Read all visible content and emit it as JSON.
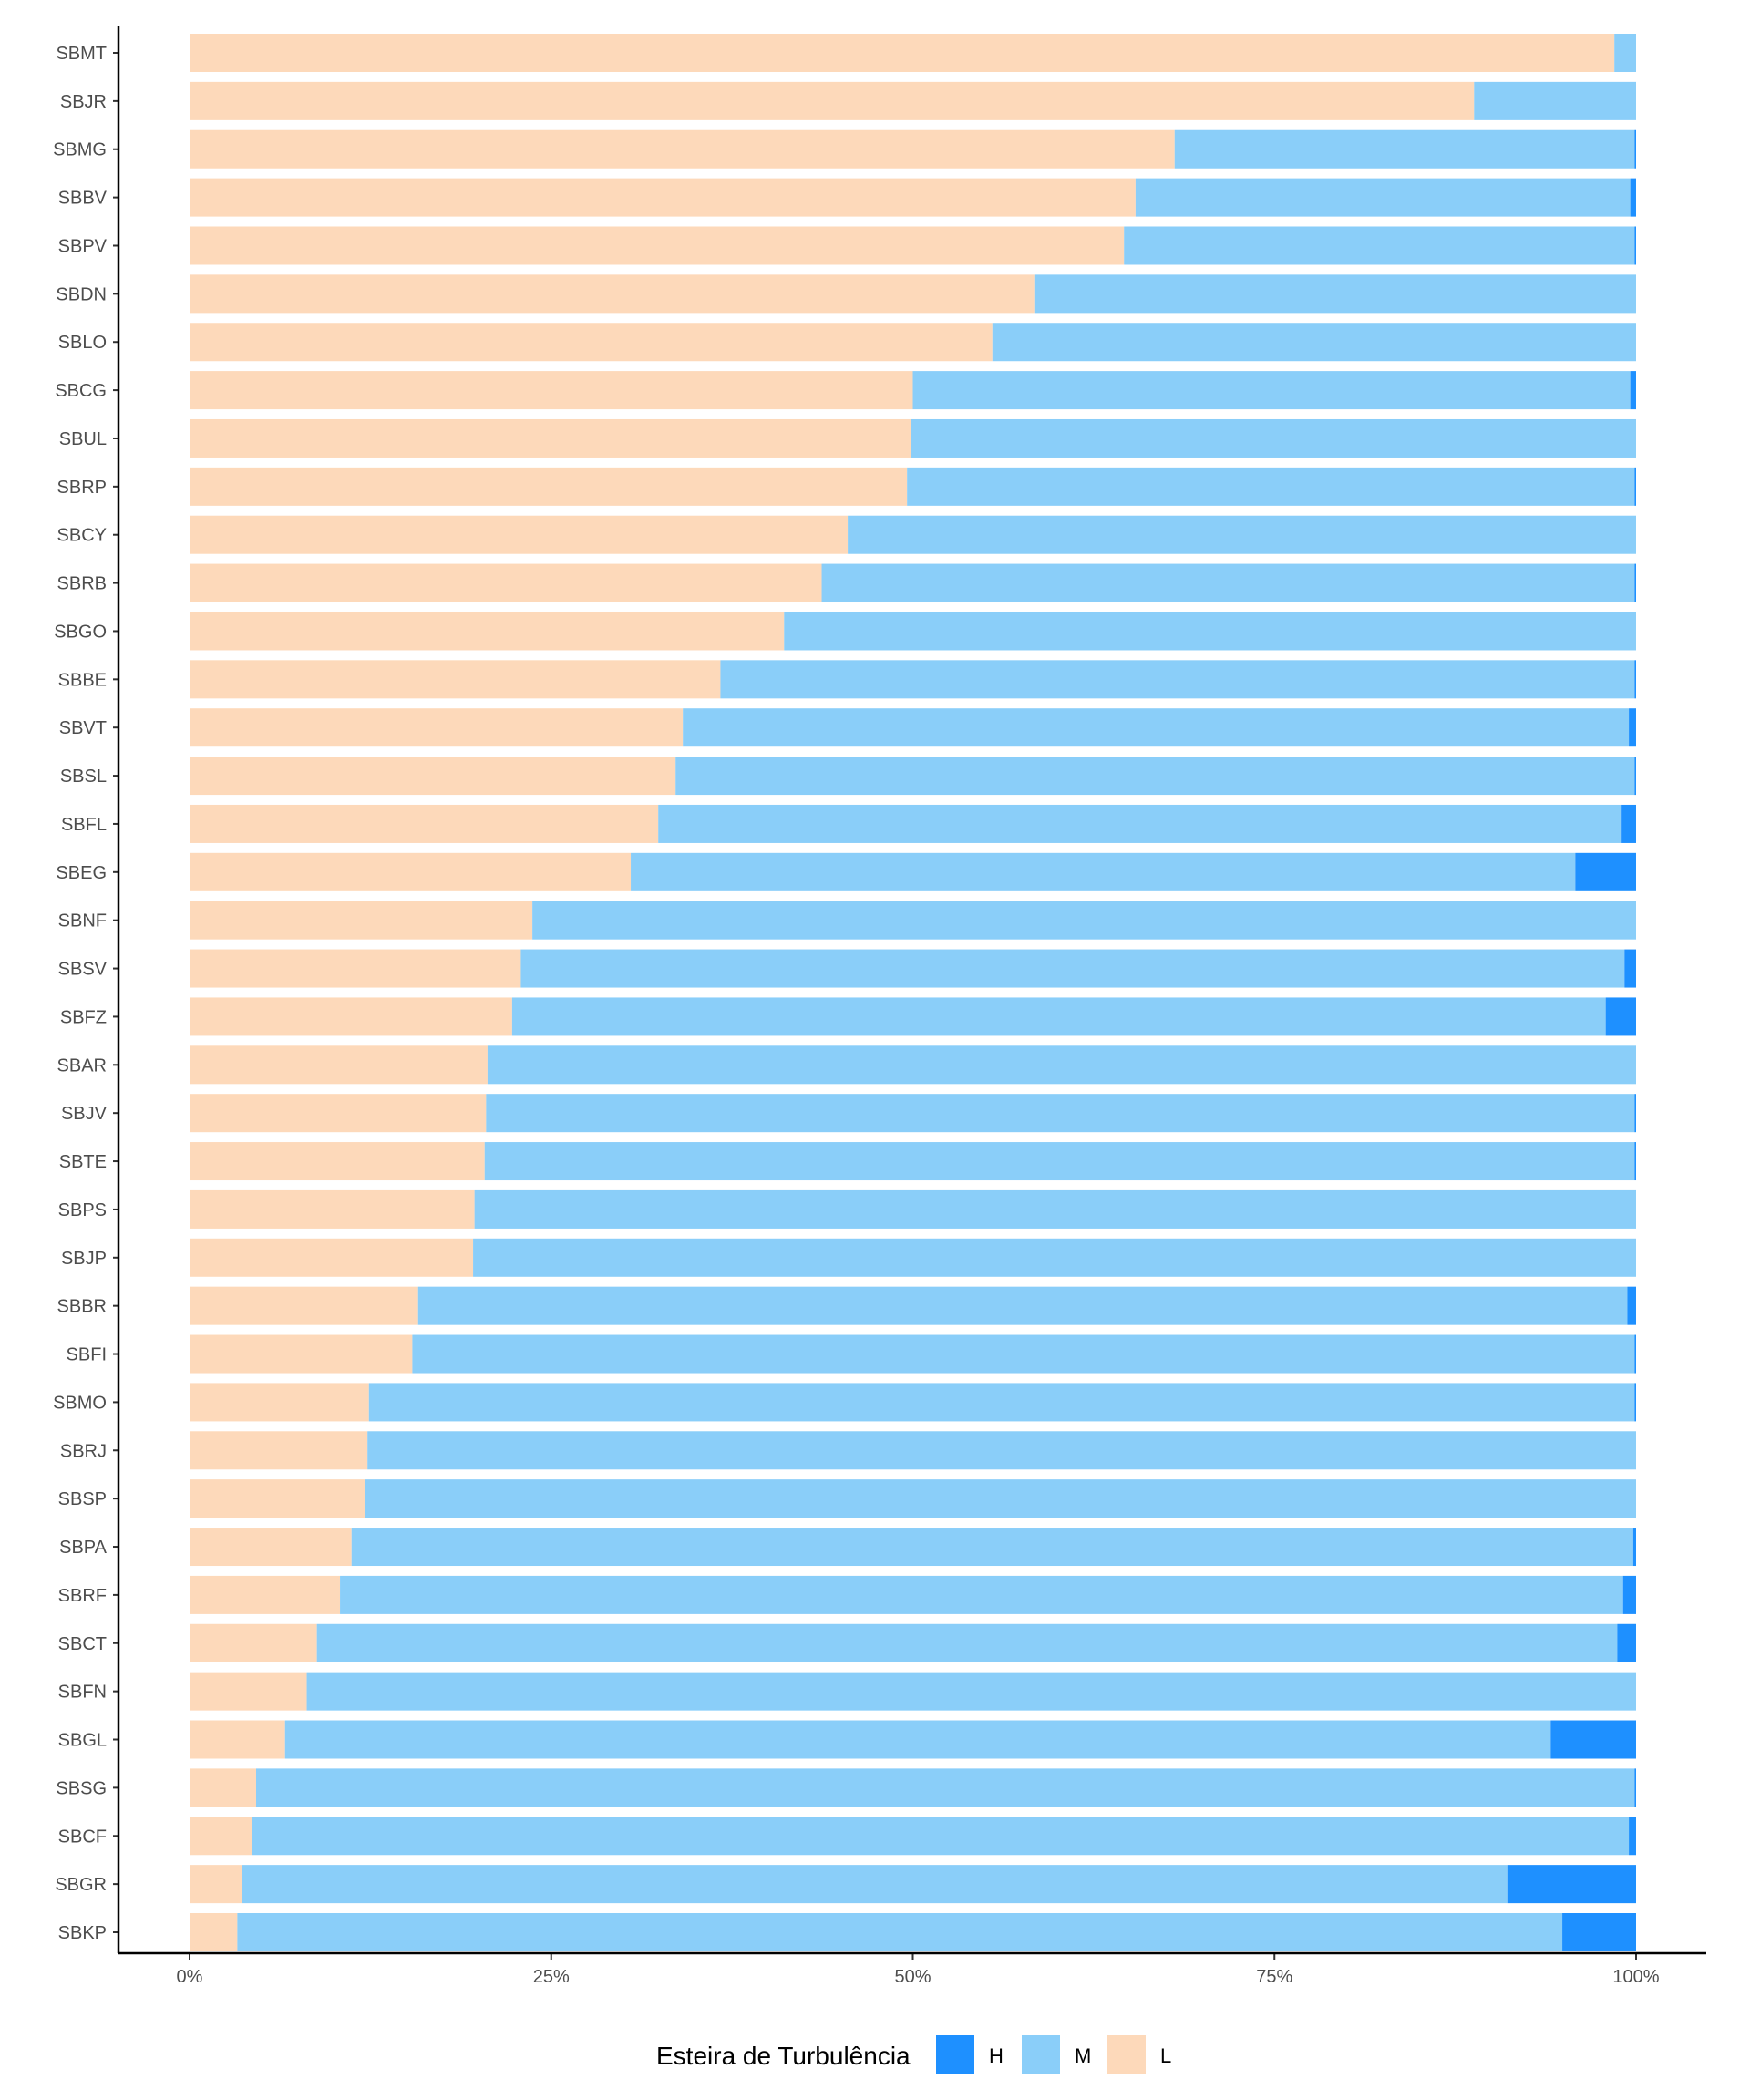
{
  "chart_data": {
    "type": "bar",
    "orientation": "horizontal",
    "stacked": true,
    "categories": [
      "SBMT",
      "SBJR",
      "SBMG",
      "SBBV",
      "SBPV",
      "SBDN",
      "SBLO",
      "SBCG",
      "SBUL",
      "SBRP",
      "SBCY",
      "SBRB",
      "SBGO",
      "SBBE",
      "SBVT",
      "SBSL",
      "SBFL",
      "SBEG",
      "SBNF",
      "SBSV",
      "SBFZ",
      "SBAR",
      "SBJV",
      "SBTE",
      "SBPS",
      "SBJP",
      "SBBR",
      "SBFI",
      "SBMO",
      "SBRJ",
      "SBSP",
      "SBPA",
      "SBRF",
      "SBCT",
      "SBFN",
      "SBGL",
      "SBSG",
      "SBCF",
      "SBGR",
      "SBKP"
    ],
    "series": [
      {
        "name": "L",
        "color": "#FDD9BA",
        "values": [
          98.5,
          88.8,
          68.1,
          65.4,
          64.6,
          58.4,
          55.5,
          50.0,
          49.9,
          49.6,
          45.5,
          43.7,
          41.1,
          36.7,
          34.1,
          33.6,
          32.4,
          30.5,
          23.7,
          22.9,
          22.3,
          20.6,
          20.5,
          20.4,
          19.7,
          19.6,
          15.8,
          15.4,
          12.4,
          12.3,
          12.1,
          11.2,
          10.4,
          8.8,
          8.1,
          6.6,
          4.6,
          4.3,
          3.6,
          3.3
        ]
      },
      {
        "name": "M",
        "color": "#8ACEF9",
        "values": [
          1.5,
          11.2,
          31.8,
          34.2,
          35.3,
          41.6,
          44.5,
          49.6,
          50.1,
          50.3,
          54.5,
          56.2,
          58.9,
          63.2,
          65.4,
          66.3,
          66.6,
          65.3,
          76.3,
          76.3,
          75.6,
          79.4,
          79.4,
          79.5,
          80.3,
          80.4,
          83.6,
          84.5,
          87.5,
          87.7,
          87.9,
          88.6,
          88.7,
          89.9,
          91.9,
          87.5,
          95.3,
          95.2,
          87.5,
          91.6
        ]
      },
      {
        "name": "H",
        "color": "#1E90FF",
        "values": [
          0,
          0,
          0.1,
          0.4,
          0.1,
          0,
          0,
          0.4,
          0,
          0.1,
          0,
          0.1,
          0,
          0.1,
          0.5,
          0.1,
          1.0,
          4.2,
          0,
          0.8,
          2.1,
          0,
          0.1,
          0.1,
          0,
          0,
          0.6,
          0.1,
          0.1,
          0,
          0,
          0.2,
          0.9,
          1.3,
          0,
          5.9,
          0.1,
          0.5,
          8.9,
          5.1
        ]
      }
    ],
    "x_ticks": [
      "0%",
      "25%",
      "50%",
      "75%",
      "100%"
    ],
    "xlim": [
      0,
      100
    ],
    "grid": false,
    "legend": {
      "title": "Esteira de Turbulência",
      "position": "bottom",
      "items": [
        "H",
        "M",
        "L"
      ]
    }
  }
}
